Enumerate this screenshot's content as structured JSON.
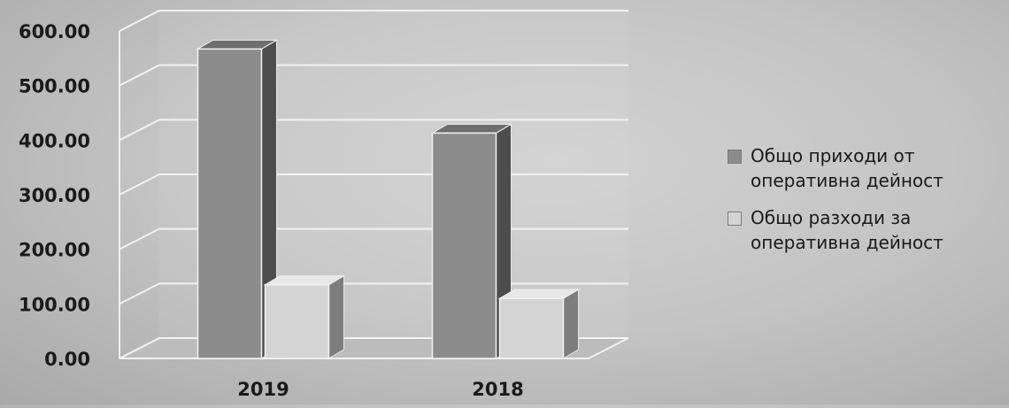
{
  "chart_data": {
    "type": "bar",
    "categories": [
      "2019",
      "2018"
    ],
    "series": [
      {
        "name": "Общо приходи от оперативна дейност",
        "values": [
          567,
          413
        ],
        "color": "#8c8c8c"
      },
      {
        "name": "Общо разходи за оперативна дейност",
        "values": [
          135,
          110
        ],
        "color": "#d4d4d4"
      }
    ],
    "ylim": [
      0,
      600
    ],
    "y_ticks": [
      "0.00",
      "100.00",
      "200.00",
      "300.00",
      "400.00",
      "500.00",
      "600.00"
    ],
    "grid": true,
    "legend": "right",
    "xlabel": "",
    "ylabel": "",
    "title": ""
  }
}
